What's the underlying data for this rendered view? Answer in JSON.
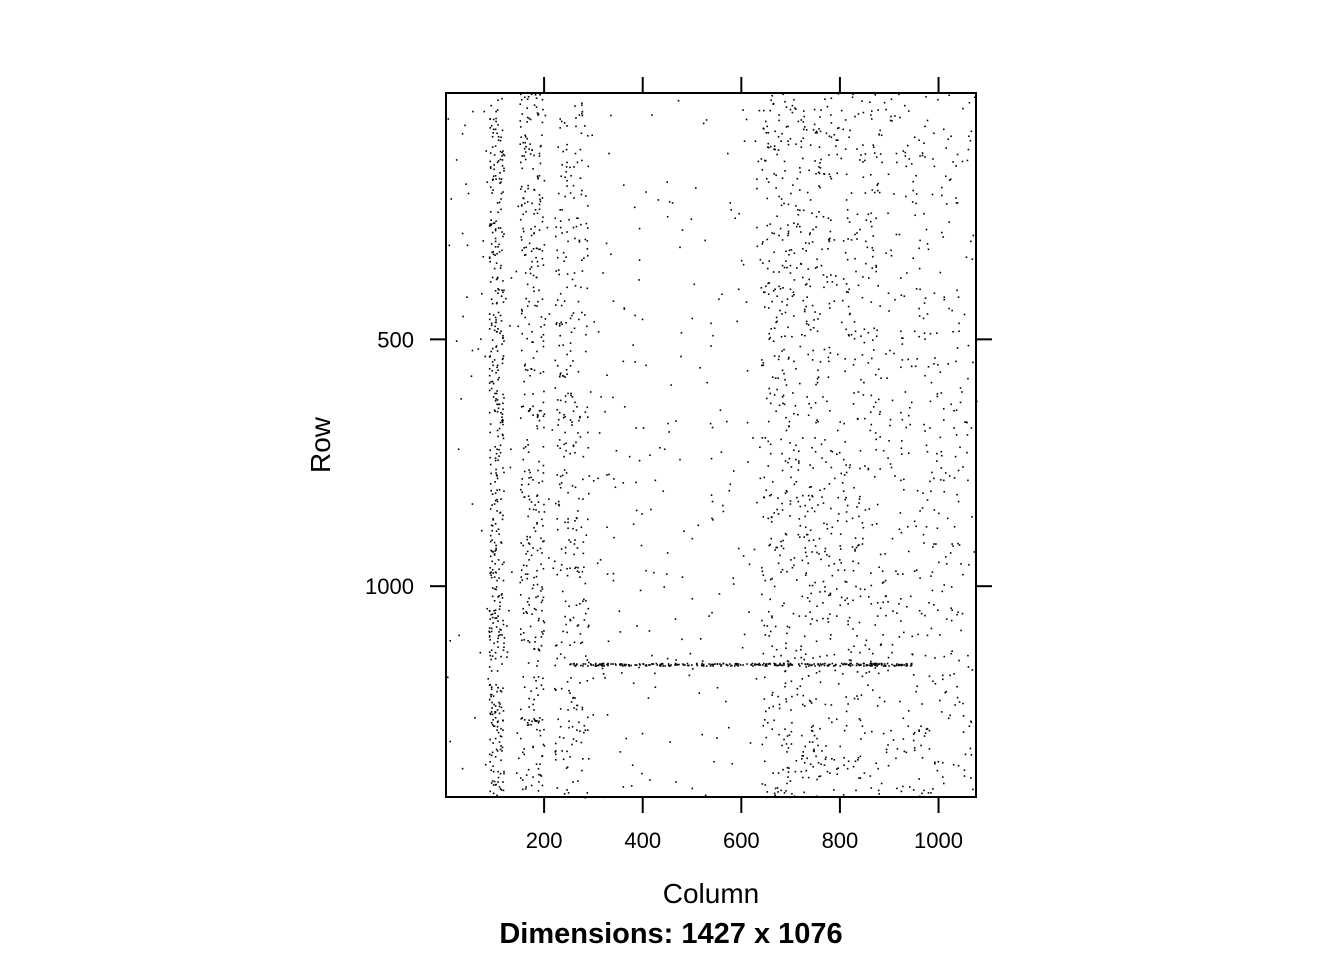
{
  "chart_data": {
    "type": "heatmap",
    "subtype": "sparse-matrix-pattern",
    "title": "",
    "xlabel": "Column",
    "ylabel": "Row",
    "caption": "Dimensions: 1427 x 1076",
    "dimensions": {
      "rows": 1427,
      "cols": 1076
    },
    "xlim": [
      1,
      1076
    ],
    "ylim": [
      1427,
      1
    ],
    "x_ticks": [
      200,
      400,
      600,
      800,
      1000
    ],
    "x_tick_labels": [
      "200",
      "400",
      "600",
      "800",
      "1000"
    ],
    "y_ticks": [
      500,
      1000
    ],
    "y_tick_labels": [
      "500",
      "1000"
    ],
    "y_axis_reversed": true,
    "grid": false,
    "colors": {
      "nonzero": "#000000",
      "background": "#ffffff",
      "frame": "#000000"
    },
    "dense_column_bands": [
      {
        "col_range": [
          88,
          118
        ],
        "density": 0.01
      },
      {
        "col_range": [
          150,
          200
        ],
        "density": 0.005
      },
      {
        "col_range": [
          220,
          290
        ],
        "density": 0.003
      },
      {
        "col_range": [
          640,
          760
        ],
        "density": 0.003
      },
      {
        "col_range": [
          760,
          880
        ],
        "density": 0.002
      },
      {
        "col_range": [
          880,
          1070
        ],
        "density": 0.0012
      }
    ],
    "dense_row_bands": [
      {
        "row_range": [
          1155,
          1160
        ],
        "col_range": [
          250,
          950
        ],
        "density": 0.35
      }
    ],
    "background_density": 0.0004
  }
}
